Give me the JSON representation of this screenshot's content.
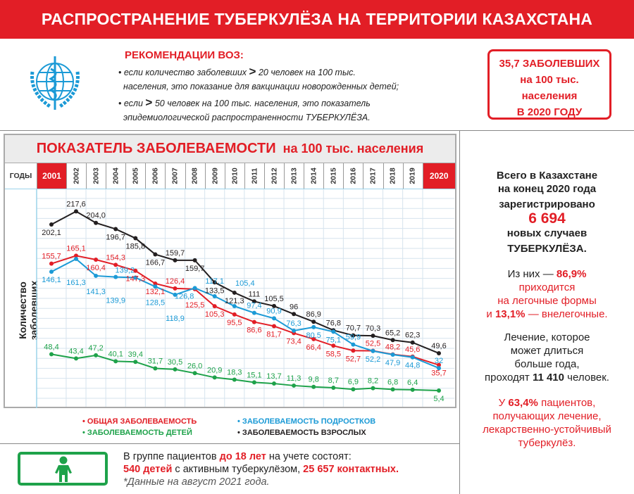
{
  "header": {
    "title": "РАСПРОСТРАНЕНИЕ ТУБЕРКУЛЁЗА НА ТЕРРИТОРИИ КАЗАХСТАНА"
  },
  "who": {
    "title": "РЕКОМЕНДАЦИИ ВОЗ:",
    "item1_a": "если количество заболевших",
    "item1_gt": ">",
    "item1_b": "20 человек на 100 тыс.",
    "item1_c": "населения, это показание для вакцинации новорожденных детей;",
    "item2_a": "если",
    "item2_gt": ">",
    "item2_b": "50 человек на 100 тыс. населения, это показатель",
    "item2_c": "эпидемиологической распространенности ТУБЕРКУЛЁЗА."
  },
  "highlight": {
    "l1": "35,7 ЗАБОЛЕВШИХ",
    "l2": "на 100 тыс.",
    "l3": "населения",
    "l4": "В 2020 ГОДУ"
  },
  "panel": {
    "title_main": "ПОКАЗАТЕЛЬ ЗАБОЛЕВАЕМОСТИ",
    "title_sub": "на 100 тыс. населения",
    "years_label": "ГОДЫ"
  },
  "chart_data": {
    "type": "line",
    "title": "ПОКАЗАТЕЛЬ ЗАБОЛЕВАЕМОСТИ на 100 тыс. населения",
    "xlabel": "ГОДЫ",
    "ylabel": "Количество заболевших",
    "categories": [
      "2001",
      "2002",
      "2003",
      "2004",
      "2005",
      "2006",
      "2007",
      "2008",
      "2009",
      "2010",
      "2011",
      "2012",
      "2013",
      "2014",
      "2015",
      "2016",
      "2017",
      "2018",
      "2019",
      "2020"
    ],
    "ylim": [
      0,
      230
    ],
    "grid": true,
    "legend_position": "bottom",
    "series": [
      {
        "name": "ЗАБОЛЕВАЕМОСТЬ ВЗРОСЛЫХ",
        "color": "#231f20",
        "values": [
          202.1,
          217.6,
          204.0,
          196.7,
          185.8,
          166.7,
          159.7,
          159.7,
          133.5,
          121.3,
          111,
          105.5,
          96,
          86.9,
          76.8,
          70.7,
          70.3,
          65.2,
          62.3,
          49.6
        ],
        "labels": [
          "202,1",
          "217,6",
          "204,0",
          "196,7",
          "185,8",
          "166,7",
          "159,7",
          "159,7",
          "133,5",
          "121,3",
          "111",
          "105,5",
          "96",
          "86,9",
          "76,8",
          "70,7",
          "70,3",
          "65,2",
          "62,3",
          "49,6"
        ]
      },
      {
        "name": "ОБЩАЯ ЗАБОЛЕВАЕМОСТЬ",
        "color": "#e21e26",
        "values": [
          155.7,
          165.1,
          160.4,
          154.3,
          147.3,
          132.1,
          126.4,
          125.5,
          105.3,
          95.5,
          86.6,
          81.7,
          73.4,
          66.4,
          58.5,
          52.7,
          52.5,
          48.2,
          45.6,
          35.7
        ],
        "labels": [
          "155,7",
          "165,1",
          "160,4",
          "154,3",
          "147,3",
          "132,1",
          "126,4",
          "125,5",
          "105,3",
          "95,5",
          "86,6",
          "81,7",
          "73,4",
          "66,4",
          "58,5",
          "52,7",
          "52,5",
          "48,2",
          "45,6",
          "35,7"
        ]
      },
      {
        "name": "ЗАБОЛЕВАЕМОСТЬ ПОДРОСТКОВ",
        "color": "#1b9ad6",
        "values": [
          146.1,
          161.3,
          141.3,
          139.9,
          139.2,
          128.5,
          118.9,
          126.8,
          117.1,
          105.4,
          97.4,
          90.9,
          76.3,
          80.5,
          75.1,
          59.9,
          52.2,
          47.9,
          44.8,
          32
        ],
        "labels": [
          "146,1",
          "161,3",
          "141,3",
          "139,9",
          "139,2",
          "128,5",
          "118,9",
          "126,8",
          "117,1",
          "105,4",
          "97,4",
          "90,9",
          "76,3",
          "80,5",
          "75,1",
          "59,9",
          "52,2",
          "47,9",
          "44,8",
          "32"
        ]
      },
      {
        "name": "ЗАБОЛЕВАЕМОСТЬ ДЕТЕЙ",
        "color": "#1ea24a",
        "values": [
          48.4,
          43.4,
          47.2,
          40.1,
          39.4,
          31.7,
          30.5,
          26.0,
          20.9,
          18.3,
          15.1,
          13.7,
          11.3,
          9.8,
          8.7,
          6.9,
          8.2,
          6.8,
          6.4,
          5.4
        ],
        "labels": [
          "48,4",
          "43,4",
          "47,2",
          "40,1",
          "39,4",
          "31,7",
          "30,5",
          "26,0",
          "20,9",
          "18,3",
          "15,1",
          "13,7",
          "11,3",
          "9,8",
          "8,7",
          "6,9",
          "8,2",
          "6,8",
          "6,4",
          "5,4"
        ]
      }
    ]
  },
  "legend": {
    "total": "ОБЩАЯ ЗАБОЛЕВАЕМОСТЬ",
    "teens": "ЗАБОЛЕВАЕМОСТЬ ПОДРОСТКОВ",
    "children": "ЗАБОЛЕВАЕМОСТЬ ДЕТЕЙ",
    "adults": "ЗАБОЛЕВАЕМОСТЬ ВЗРОСЛЫХ"
  },
  "summary": {
    "p1_l1": "Всего в Казахстане",
    "p1_l2": "на конец 2020 года",
    "p1_l3": "зарегистрировано",
    "p1_num": "6 694",
    "p1_l4": "новых случаев",
    "p1_l5": "ТУБЕРКУЛЁЗА.",
    "p2_a": "Из них —",
    "p2_pct": "86,9%",
    "p2_l2": "приходится",
    "p2_l3": "на легочные формы",
    "p2_i": "и",
    "p2_pct2": "13,1%",
    "p2_b": "— внелегочные.",
    "p3_l1": "Лечение, которое",
    "p3_l2": "может длиться",
    "p3_l3": "больше года,",
    "p3_a": "проходят",
    "p3_num": "11 410",
    "p3_b": "человек.",
    "p4_a": "У",
    "p4_pct": "63,4%",
    "p4_b": "пациентов,",
    "p4_l2": "получающих лечение,",
    "p4_l3": "лекарственно-устойчивый",
    "p4_l4": "туберкулёз."
  },
  "bottom": {
    "a": "В группе пациентов",
    "age": "до 18 лет",
    "b": "на учете состоят:",
    "kids": "540 детей",
    "c": "с активным туберкулёзом,",
    "contacts": "25 657 контактных.",
    "note": "*Данные на август 2021 года."
  }
}
